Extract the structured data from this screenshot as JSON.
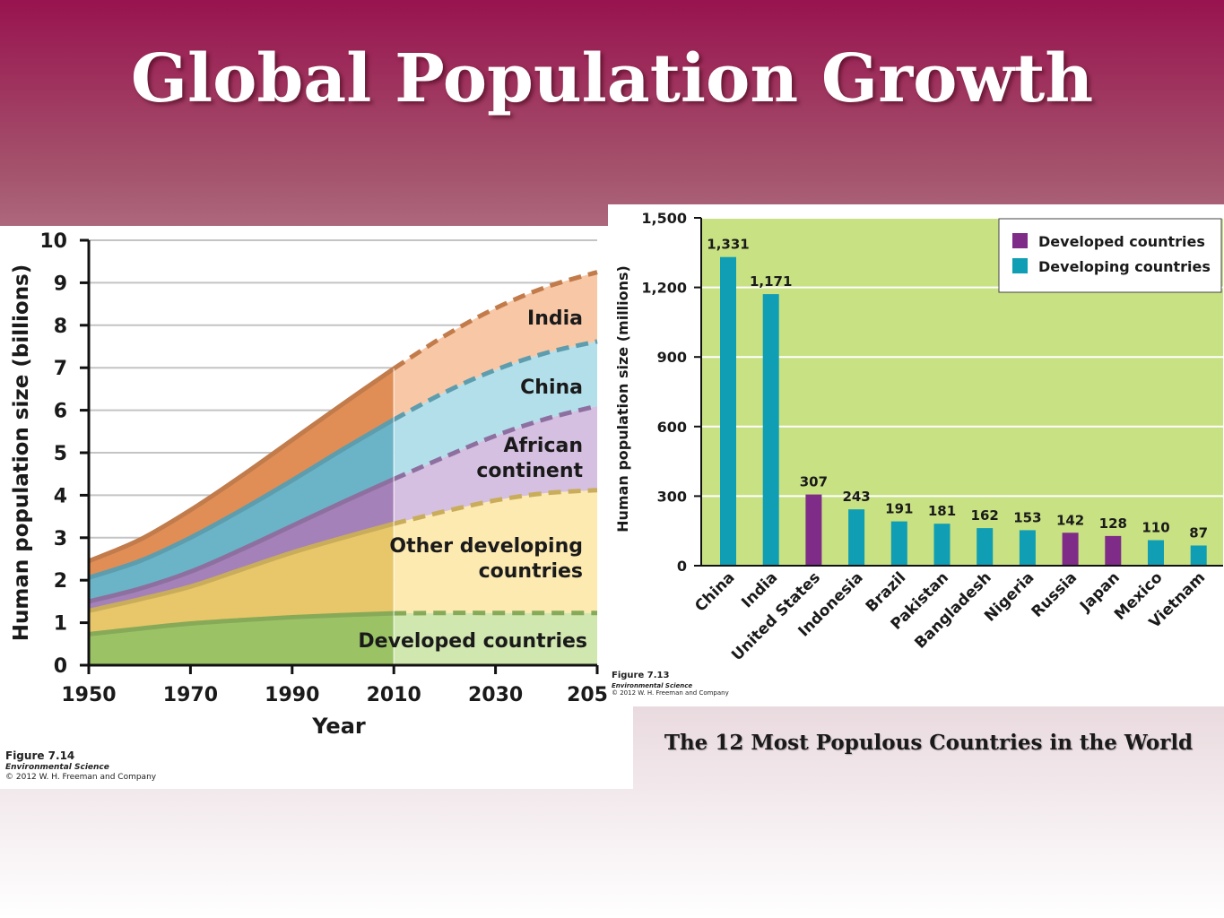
{
  "slide": {
    "title": "Global Population Growth",
    "bar_caption": "The 12 Most Populous Countries in the World"
  },
  "colors": {
    "banner_top": "#98134f",
    "india": "#f39a5e",
    "china": "#74c4d8",
    "african": "#b28cc8",
    "other_developing": "#fbd872",
    "developed": "#a9d46f",
    "bar_developed": "#7e2c87",
    "bar_developing": "#0f9eb3",
    "bar_background": "#c8e183"
  },
  "area_figure": {
    "figure_label": "Figure 7.14",
    "book": "Environmental Science",
    "copyright": "© 2012 W. H. Freeman and Company"
  },
  "bar_figure": {
    "figure_label": "Figure 7.13",
    "book": "Environmental Science",
    "copyright": "© 2012 W. H. Freeman and Company"
  },
  "chart_data": [
    {
      "type": "area",
      "xlabel": "Year",
      "ylabel": "Human population size (billions)",
      "x_ticks": [
        "1950",
        "1970",
        "1990",
        "2010",
        "2030",
        "205"
      ],
      "y_ticks": [
        "0",
        "1",
        "2",
        "3",
        "4",
        "5",
        "6",
        "7",
        "8",
        "9",
        "10"
      ],
      "xlim": [
        1950,
        2050
      ],
      "ylim": [
        0,
        10
      ],
      "projection_start": 2010,
      "stacked": true,
      "x": [
        1950,
        1960,
        1970,
        1980,
        1990,
        2000,
        2010,
        2020,
        2030,
        2040,
        2050
      ],
      "series": [
        {
          "name": "Developed countries",
          "label_lines": [
            "Developed countries"
          ],
          "color_key": "developed",
          "cumulative": [
            0.73,
            0.86,
            0.98,
            1.06,
            1.13,
            1.18,
            1.22,
            1.23,
            1.23,
            1.23,
            1.23
          ]
        },
        {
          "name": "Other developing countries",
          "label_lines": [
            "Other developing",
            "countries"
          ],
          "color_key": "other_developing",
          "cumulative": [
            1.28,
            1.55,
            1.85,
            2.25,
            2.65,
            3.0,
            3.33,
            3.62,
            3.88,
            4.05,
            4.12
          ]
        },
        {
          "name": "African continent",
          "label_lines": [
            "African",
            "continent"
          ],
          "color_key": "african",
          "cumulative": [
            1.5,
            1.8,
            2.2,
            2.72,
            3.28,
            3.84,
            4.38,
            4.9,
            5.4,
            5.8,
            6.1
          ]
        },
        {
          "name": "China",
          "label_lines": [
            "China"
          ],
          "color_key": "china",
          "cumulative": [
            2.06,
            2.45,
            3.0,
            3.65,
            4.35,
            5.08,
            5.78,
            6.42,
            6.95,
            7.35,
            7.62
          ]
        },
        {
          "name": "India",
          "label_lines": [
            "India"
          ],
          "color_key": "india",
          "cumulative": [
            2.45,
            2.95,
            3.65,
            4.45,
            5.3,
            6.15,
            6.98,
            7.75,
            8.4,
            8.9,
            9.25
          ]
        }
      ]
    },
    {
      "type": "bar",
      "ylabel": "Human population size (millions)",
      "ylim": [
        0,
        1500
      ],
      "y_ticks": [
        "0",
        "300",
        "600",
        "900",
        "1,200",
        "1,500"
      ],
      "grid": true,
      "legend_position": "top-right",
      "legend": [
        {
          "label": "Developed countries",
          "color_key": "bar_developed"
        },
        {
          "label": "Developing countries",
          "color_key": "bar_developing"
        }
      ],
      "categories": [
        "China",
        "India",
        "United States",
        "Indonesia",
        "Brazil",
        "Pakistan",
        "Bangladesh",
        "Nigeria",
        "Russia",
        "Japan",
        "Mexico",
        "Vietnam"
      ],
      "values": [
        1331,
        1171,
        307,
        243,
        191,
        181,
        162,
        153,
        142,
        128,
        110,
        87
      ],
      "value_labels": [
        "1,331",
        "1,171",
        "307",
        "243",
        "191",
        "181",
        "162",
        "153",
        "142",
        "128",
        "110",
        "87"
      ],
      "groups": [
        "Developing countries",
        "Developing countries",
        "Developed countries",
        "Developing countries",
        "Developing countries",
        "Developing countries",
        "Developing countries",
        "Developing countries",
        "Developed countries",
        "Developed countries",
        "Developing countries",
        "Developing countries"
      ]
    }
  ]
}
